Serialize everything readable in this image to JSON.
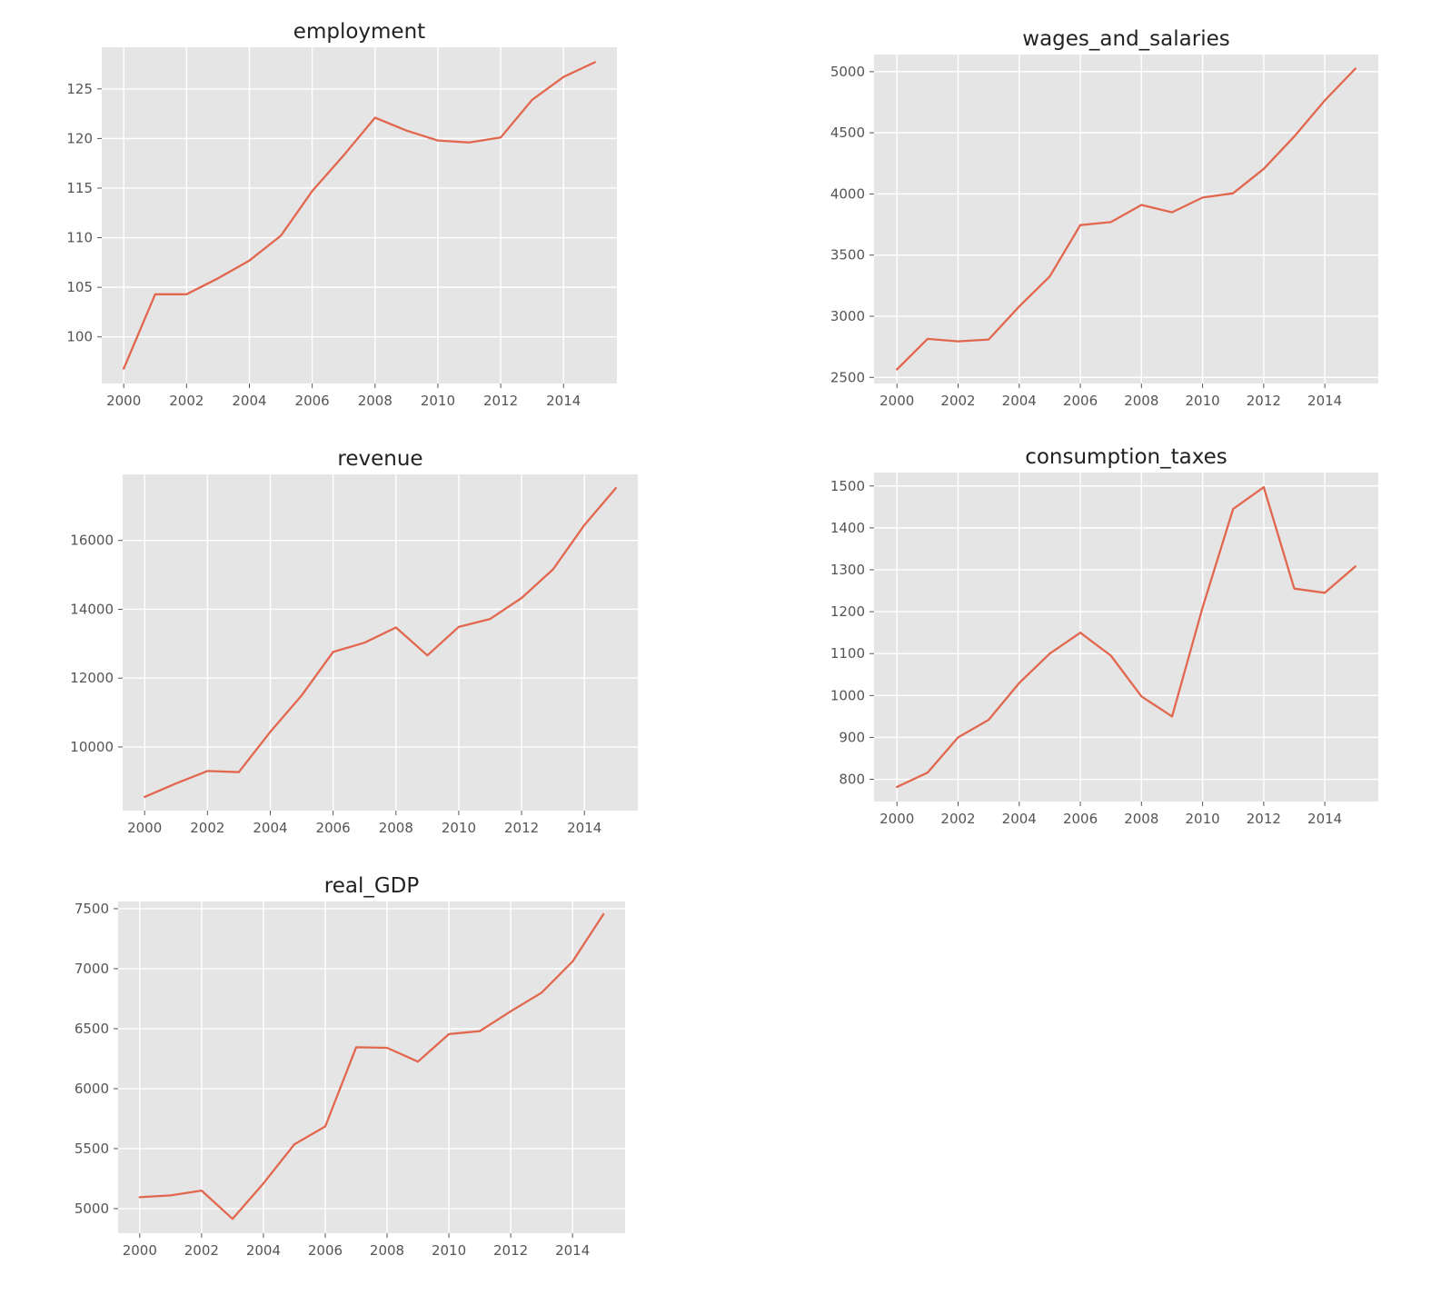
{
  "series_color": "#e2674f",
  "chart_data": [
    {
      "type": "line",
      "title": "employment",
      "x": [
        2000,
        2001,
        2002,
        2003,
        2004,
        2005,
        2006,
        2007,
        2008,
        2009,
        2010,
        2011,
        2012,
        2013,
        2014,
        2015
      ],
      "series": [
        {
          "values": [
            96.8,
            104.3,
            104.3,
            105.9,
            107.7,
            110.2,
            114.7,
            118.3,
            122.1,
            120.8,
            119.8,
            119.6,
            120.1,
            123.9,
            126.2,
            127.7
          ]
        }
      ],
      "xticks": [
        2000,
        2002,
        2004,
        2006,
        2008,
        2010,
        2012,
        2014
      ],
      "yticks": [
        100,
        105,
        110,
        115,
        120,
        125
      ],
      "xlim": [
        1999.3,
        2015.7
      ],
      "ylim": [
        95.3,
        129.2
      ],
      "grid": true
    },
    {
      "type": "line",
      "title": "wages_and_salaries",
      "x": [
        2000,
        2001,
        2002,
        2003,
        2004,
        2005,
        2006,
        2007,
        2008,
        2009,
        2010,
        2011,
        2012,
        2013,
        2014,
        2015
      ],
      "series": [
        {
          "values": [
            2565,
            2815,
            2795,
            2810,
            3080,
            3325,
            3745,
            3770,
            3910,
            3850,
            3970,
            4005,
            4205,
            4470,
            4765,
            5025
          ]
        }
      ],
      "xticks": [
        2000,
        2002,
        2004,
        2006,
        2008,
        2010,
        2012,
        2014
      ],
      "yticks": [
        2500,
        3000,
        3500,
        4000,
        4500,
        5000
      ],
      "xlim": [
        1999.25,
        2015.75
      ],
      "ylim": [
        2450,
        5140
      ],
      "grid": true
    },
    {
      "type": "line",
      "title": "revenue",
      "x": [
        2000,
        2001,
        2002,
        2003,
        2004,
        2005,
        2006,
        2007,
        2008,
        2009,
        2010,
        2011,
        2012,
        2013,
        2014,
        2015
      ],
      "series": [
        {
          "values": [
            8550,
            8940,
            9300,
            9270,
            10440,
            11500,
            12760,
            13030,
            13470,
            12660,
            13490,
            13720,
            14330,
            15160,
            16450,
            17520
          ]
        }
      ],
      "xticks": [
        2000,
        2002,
        2004,
        2006,
        2008,
        2010,
        2012,
        2014
      ],
      "yticks": [
        10000,
        12000,
        14000,
        16000
      ],
      "xlim": [
        1999.3,
        2015.7
      ],
      "ylim": [
        8150,
        17920
      ],
      "grid": true
    },
    {
      "type": "line",
      "title": "consumption_taxes",
      "x": [
        2000,
        2001,
        2002,
        2003,
        2004,
        2005,
        2006,
        2007,
        2008,
        2009,
        2010,
        2011,
        2012,
        2013,
        2014,
        2015
      ],
      "series": [
        {
          "values": [
            782,
            816,
            900,
            942,
            1030,
            1100,
            1150,
            1095,
            998,
            950,
            1210,
            1445,
            1497,
            1255,
            1245,
            1308
          ]
        }
      ],
      "xticks": [
        2000,
        2002,
        2004,
        2006,
        2008,
        2010,
        2012,
        2014
      ],
      "yticks": [
        800,
        900,
        1000,
        1100,
        1200,
        1300,
        1400,
        1500
      ],
      "xlim": [
        1999.25,
        2015.75
      ],
      "ylim": [
        747,
        1532
      ],
      "grid": true
    },
    {
      "type": "line",
      "title": "real_GDP",
      "x": [
        2000,
        2001,
        2002,
        2003,
        2004,
        2005,
        2006,
        2007,
        2008,
        2009,
        2010,
        2011,
        2012,
        2013,
        2014,
        2015
      ],
      "series": [
        {
          "values": [
            5095,
            5110,
            5150,
            4915,
            5210,
            5535,
            5685,
            6345,
            6340,
            6225,
            6455,
            6480,
            6645,
            6800,
            7060,
            7455
          ]
        }
      ],
      "xticks": [
        2000,
        2002,
        2004,
        2006,
        2008,
        2010,
        2012,
        2014
      ],
      "yticks": [
        5000,
        5500,
        6000,
        6500,
        7000,
        7500
      ],
      "xlim": [
        1999.3,
        2015.7
      ],
      "ylim": [
        4795,
        7560
      ],
      "grid": true
    }
  ]
}
